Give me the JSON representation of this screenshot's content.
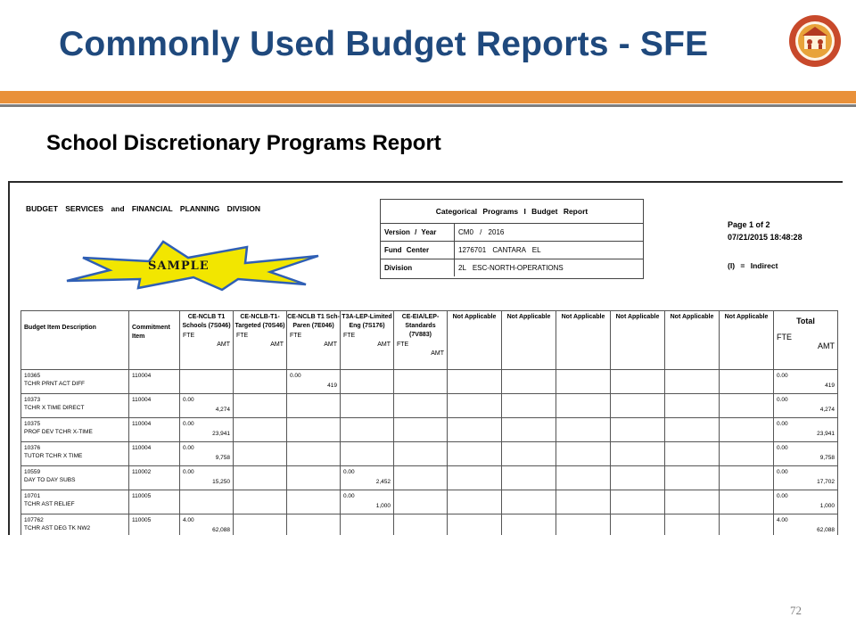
{
  "slide": {
    "title": "Commonly Used Budget Reports - SFE",
    "subtitle": "School Discretionary Programs Report",
    "page_number": "72"
  },
  "report": {
    "division_name": "BUDGET SERVICES and FINANCIAL PLANNING DIVISION",
    "header_caption": "Categorical Programs I Budget Report",
    "header_rows": [
      {
        "label": "Version / Year",
        "value": "CM0 / 2016"
      },
      {
        "label": "Fund Center",
        "value": "1276701 CANTARA EL"
      },
      {
        "label": "Division",
        "value": "2L ESC-NORTH-OPERATIONS"
      }
    ],
    "page": "Page 1 of 2",
    "datetime": "07/21/2015 18:48:28",
    "indirect_note": "(I) = Indirect",
    "stamp": "SAMPLE",
    "table": {
      "col_budget_item": "Budget Item Description",
      "col_commitment": "Commitment Item",
      "fte_label": "FTE",
      "amt_label": "AMT",
      "total_label": "Total",
      "funds": [
        {
          "name": "CE-NCLB T1 Schools (7S046)"
        },
        {
          "name": "CE-NCLB-T1- Targeted (70S46)"
        },
        {
          "name": "CE-NCLB T1 Sch-Paren (7E046)"
        },
        {
          "name": "T3A-LEP-Limited Eng (7S176)"
        },
        {
          "name": "CE-EIA/LEP- Standards (7V883)"
        },
        {
          "name": "Not Applicable"
        },
        {
          "name": "Not Applicable"
        },
        {
          "name": "Not Applicable"
        },
        {
          "name": "Not Applicable"
        },
        {
          "name": "Not Applicable"
        },
        {
          "name": "Not Applicable"
        }
      ],
      "rows": [
        {
          "item": "10365",
          "desc": "TCHR PRNT ACT DIFF",
          "commit": "110004",
          "f1_fte": "",
          "f1_amt": "",
          "f3_fte": "0.00",
          "f3_amt": "419",
          "f4_fte": "",
          "f4_amt": "",
          "tot_fte": "0.00",
          "tot_amt": "419"
        },
        {
          "item": "10373",
          "desc": "TCHR X TIME DIRECT",
          "commit": "110004",
          "f1_fte": "0.00",
          "f1_amt": "4,274",
          "f3_fte": "",
          "f3_amt": "",
          "f4_fte": "",
          "f4_amt": "",
          "tot_fte": "0.00",
          "tot_amt": "4,274"
        },
        {
          "item": "10375",
          "desc": "PROF DEV TCHR X-TIME",
          "commit": "110004",
          "f1_fte": "0.00",
          "f1_amt": "23,941",
          "f3_fte": "",
          "f3_amt": "",
          "f4_fte": "",
          "f4_amt": "",
          "tot_fte": "0.00",
          "tot_amt": "23,941"
        },
        {
          "item": "10376",
          "desc": "TUTOR TCHR X TIME",
          "commit": "110004",
          "f1_fte": "0.00",
          "f1_amt": "9,758",
          "f3_fte": "",
          "f3_amt": "",
          "f4_fte": "",
          "f4_amt": "",
          "tot_fte": "0.00",
          "tot_amt": "9,758"
        },
        {
          "item": "10559",
          "desc": "DAY TO DAY SUBS",
          "commit": "110002",
          "f1_fte": "0.00",
          "f1_amt": "15,250",
          "f3_fte": "",
          "f3_amt": "",
          "f4_fte": "0.00",
          "f4_amt": "2,452",
          "tot_fte": "0.00",
          "tot_amt": "17,702"
        },
        {
          "item": "10701",
          "desc": "TCHR AST RELIEF",
          "commit": "110005",
          "f1_fte": "",
          "f1_amt": "",
          "f3_fte": "",
          "f3_amt": "",
          "f4_fte": "0.00",
          "f4_amt": "1,000",
          "tot_fte": "0.00",
          "tot_amt": "1,000"
        },
        {
          "item": "107762",
          "desc": "TCHR AST DEG TK NW2",
          "commit": "110005",
          "f1_fte": "4.00",
          "f1_amt": "62,088",
          "f3_fte": "",
          "f3_amt": "",
          "f4_fte": "",
          "f4_amt": "",
          "tot_fte": "4.00",
          "tot_amt": "62,088"
        }
      ]
    }
  },
  "colors": {
    "title": "#1f497d",
    "orange_bar": "#e9913a",
    "stamp_fill": "#f2e600",
    "stamp_border": "#2f5fb5",
    "logo_ring": "#c8492b",
    "logo_inner": "#e8a33a"
  }
}
